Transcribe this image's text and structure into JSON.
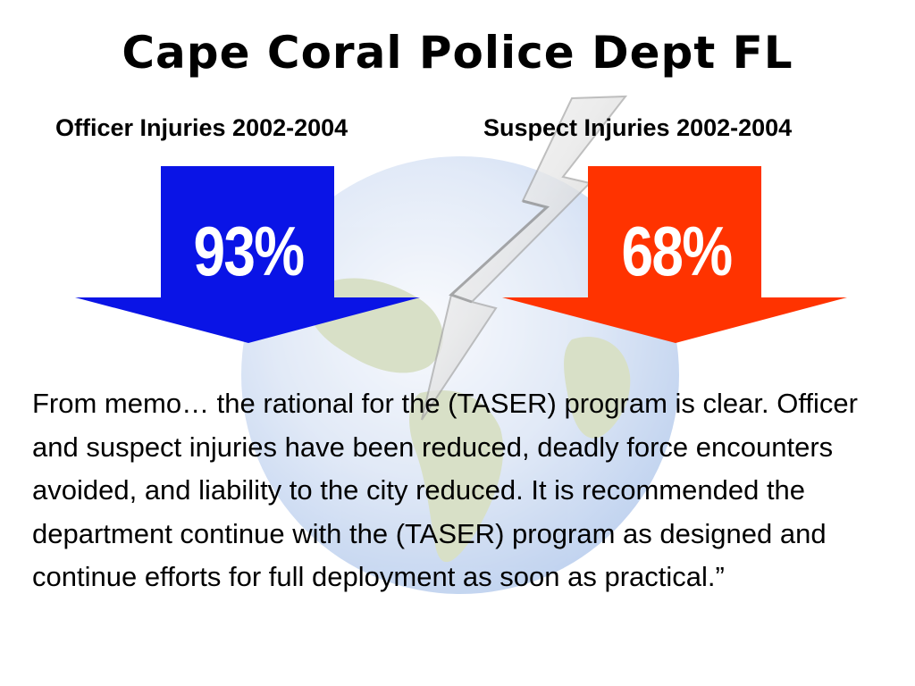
{
  "title": "Cape Coral Police Dept FL",
  "officer": {
    "heading": "Officer Injuries 2002-2004",
    "value": "93%",
    "arrow_color": "#0a14e6"
  },
  "suspect": {
    "heading": "Suspect Injuries 2002-2004",
    "value": "68%",
    "arrow_color": "#ff3300"
  },
  "quote": "From memo… the rational for the (TASER) program is clear.  Officer and suspect injuries have been reduced, deadly force encounters avoided, and liability to the city reduced.  It is recommended the department continue with the (TASER) program as designed and continue efforts for full deployment as soon as practical.”",
  "colors": {
    "background": "#ffffff",
    "text": "#000000",
    "globe_water": "#9bb8e6",
    "globe_land": "#b9c79a"
  }
}
